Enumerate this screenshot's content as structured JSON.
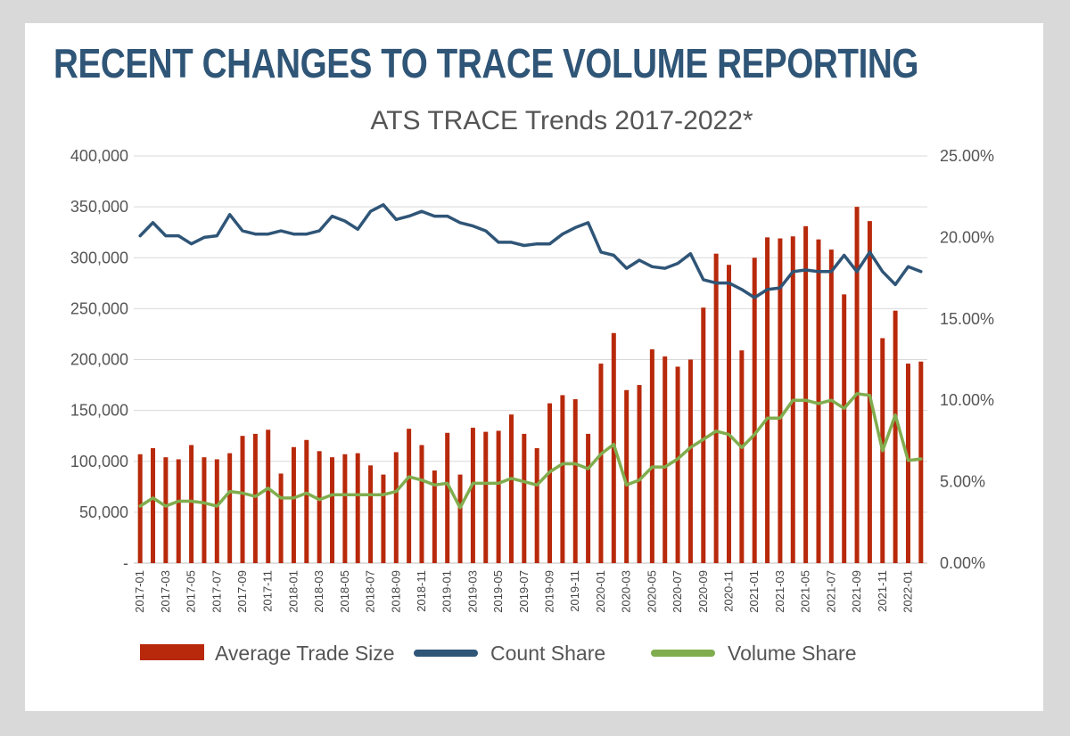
{
  "page": {
    "headline": "RECENT CHANGES TO TRACE VOLUME REPORTING"
  },
  "colors": {
    "background": "#d9d9d9",
    "card": "#ffffff",
    "headline": "#2f5577",
    "bar": "#b8290b",
    "count_line": "#2f5577",
    "volume_line": "#80ad4e",
    "grid": "#d9d9d9"
  },
  "chart_data": {
    "type": "bar",
    "title": "ATS TRACE Trends 2017-2022*",
    "x": [
      "2017-01",
      "2017-02",
      "2017-03",
      "2017-04",
      "2017-05",
      "2017-06",
      "2017-07",
      "2017-08",
      "2017-09",
      "2017-10",
      "2017-11",
      "2017-12",
      "2018-01",
      "2018-02",
      "2018-03",
      "2018-04",
      "2018-05",
      "2018-06",
      "2018-07",
      "2018-08",
      "2018-09",
      "2018-10",
      "2018-11",
      "2018-12",
      "2019-01",
      "2019-02",
      "2019-03",
      "2019-04",
      "2019-05",
      "2019-06",
      "2019-07",
      "2019-08",
      "2019-09",
      "2019-10",
      "2019-11",
      "2019-12",
      "2020-01",
      "2020-02",
      "2020-03",
      "2020-04",
      "2020-05",
      "2020-06",
      "2020-07",
      "2020-08",
      "2020-09",
      "2020-10",
      "2020-11",
      "2020-12",
      "2021-01",
      "2021-02",
      "2021-03",
      "2021-04",
      "2021-05",
      "2021-06",
      "2021-07",
      "2021-08",
      "2021-09",
      "2021-10",
      "2021-11",
      "2021-12",
      "2022-01",
      "2022-02"
    ],
    "x_tick_labels": [
      "2017-01",
      "2017-03",
      "2017-05",
      "2017-07",
      "2017-09",
      "2017-11",
      "2018-01",
      "2018-03",
      "2018-05",
      "2018-07",
      "2018-09",
      "2018-11",
      "2019-01",
      "2019-03",
      "2019-05",
      "2019-07",
      "2019-09",
      "2019-11",
      "2020-01",
      "2020-03",
      "2020-05",
      "2020-07",
      "2020-09",
      "2020-11",
      "2021-01",
      "2021-03",
      "2021-05",
      "2021-07",
      "2021-09",
      "2021-11",
      "2022-01"
    ],
    "y_left": {
      "range": [
        0,
        400000
      ],
      "tick_labels": [
        "-",
        "50,000",
        "100,000",
        "150,000",
        "200,000",
        "250,000",
        "300,000",
        "350,000",
        "400,000"
      ]
    },
    "y_right": {
      "range": [
        0,
        25
      ],
      "tick_labels": [
        "0.00%",
        "5.00%",
        "10.00%",
        "15.00%",
        "20.00%",
        "25.00%"
      ]
    },
    "grid": true,
    "legend_position": "bottom",
    "series": [
      {
        "name": "Average Trade Size",
        "type": "bar",
        "axis": "left",
        "values": [
          107000,
          113000,
          104000,
          102000,
          116000,
          104000,
          102000,
          108000,
          125000,
          127000,
          131000,
          88000,
          114000,
          121000,
          110000,
          104000,
          107000,
          108000,
          96000,
          87000,
          109000,
          132000,
          116000,
          91000,
          128000,
          87000,
          133000,
          129000,
          130000,
          146000,
          127000,
          113000,
          157000,
          165000,
          161000,
          127000,
          196000,
          226000,
          170000,
          175000,
          210000,
          203000,
          193000,
          200000,
          251000,
          304000,
          293000,
          209000,
          300000,
          320000,
          319000,
          321000,
          331000,
          318000,
          308000,
          264000,
          350000,
          336000,
          221000,
          248000,
          196000,
          198000
        ]
      },
      {
        "name": "Count Share",
        "type": "line",
        "axis": "right",
        "values": [
          20.1,
          20.9,
          20.1,
          20.1,
          19.6,
          20.0,
          20.1,
          21.4,
          20.4,
          20.2,
          20.2,
          20.4,
          20.2,
          20.2,
          20.4,
          21.3,
          21.0,
          20.5,
          21.6,
          22.0,
          21.1,
          21.3,
          21.6,
          21.3,
          21.3,
          20.9,
          20.7,
          20.4,
          19.7,
          19.7,
          19.5,
          19.6,
          19.6,
          20.2,
          20.6,
          20.9,
          19.1,
          18.9,
          18.1,
          18.6,
          18.2,
          18.1,
          18.4,
          19.0,
          17.4,
          17.2,
          17.2,
          16.8,
          16.3,
          16.8,
          16.9,
          17.9,
          18.0,
          17.9,
          17.9,
          18.9,
          17.9,
          19.1,
          17.9,
          17.1,
          18.2,
          17.9
        ]
      },
      {
        "name": "Volume Share",
        "type": "line",
        "axis": "right",
        "values": [
          3.5,
          4.0,
          3.5,
          3.8,
          3.8,
          3.7,
          3.5,
          4.4,
          4.3,
          4.1,
          4.6,
          4.0,
          4.0,
          4.3,
          3.9,
          4.2,
          4.2,
          4.2,
          4.2,
          4.2,
          4.4,
          5.3,
          5.1,
          4.8,
          4.9,
          3.4,
          4.9,
          4.9,
          4.9,
          5.2,
          5.0,
          4.8,
          5.6,
          6.1,
          6.1,
          5.8,
          6.7,
          7.3,
          4.8,
          5.1,
          5.9,
          5.9,
          6.4,
          7.1,
          7.6,
          8.1,
          7.9,
          7.1,
          7.9,
          8.9,
          8.9,
          10.0,
          10.0,
          9.8,
          10.0,
          9.5,
          10.4,
          10.3,
          6.9,
          9.1,
          6.3,
          6.4
        ]
      }
    ]
  }
}
